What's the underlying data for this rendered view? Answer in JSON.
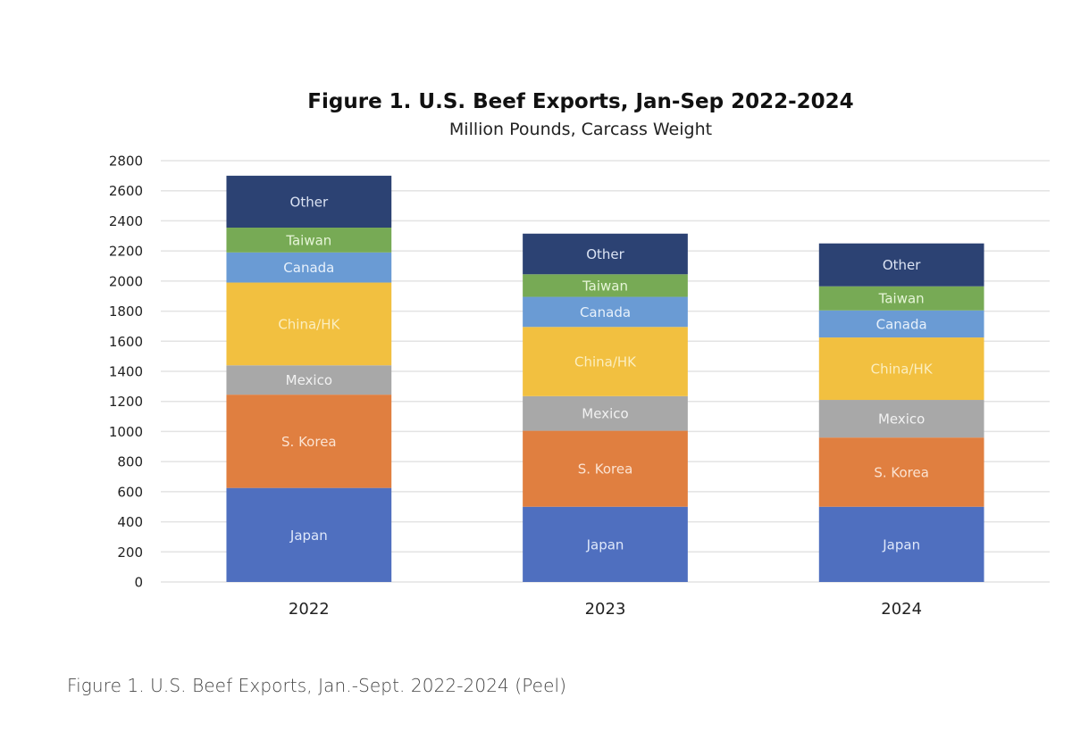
{
  "caption": "Figure 1. U.S. Beef Exports, Jan.-Sept. 2022-2024 (Peel)",
  "chart_data": {
    "type": "bar",
    "stacked": true,
    "title": "Figure 1. U.S. Beef Exports, Jan-Sep 2022-2024",
    "subtitle": "Million Pounds, Carcass Weight",
    "xlabel": "",
    "ylabel": "",
    "ylim": [
      0,
      2800
    ],
    "yticks": [
      0,
      200,
      400,
      600,
      800,
      1000,
      1200,
      1400,
      1600,
      1800,
      2000,
      2200,
      2400,
      2600,
      2800
    ],
    "grid": true,
    "legend": "inline labels inside segments",
    "categories": [
      "2022",
      "2023",
      "2024"
    ],
    "series": [
      {
        "name": "Japan",
        "color": "#4F6FBF",
        "label_color": "#dfe8fa",
        "values": [
          625,
          500,
          500
        ]
      },
      {
        "name": "S. Korea",
        "color": "#E07F40",
        "label_color": "#fbe3d2",
        "values": [
          620,
          505,
          460
        ]
      },
      {
        "name": "Mexico",
        "color": "#A8A8A8",
        "label_color": "#f2f2f2",
        "values": [
          195,
          230,
          250
        ]
      },
      {
        "name": "China/HK",
        "color": "#F2C040",
        "label_color": "#fbeec0",
        "values": [
          550,
          460,
          415
        ]
      },
      {
        "name": "Canada",
        "color": "#6A9BD4",
        "label_color": "#e8f1fb",
        "values": [
          200,
          200,
          180
        ]
      },
      {
        "name": "Taiwan",
        "color": "#77AA55",
        "label_color": "#e6f5d8",
        "values": [
          165,
          150,
          160
        ]
      },
      {
        "name": "Other",
        "color": "#2C4273",
        "label_color": "#dbe3f3",
        "values": [
          345,
          270,
          285
        ]
      }
    ],
    "totals": [
      2700,
      2315,
      2250
    ]
  }
}
